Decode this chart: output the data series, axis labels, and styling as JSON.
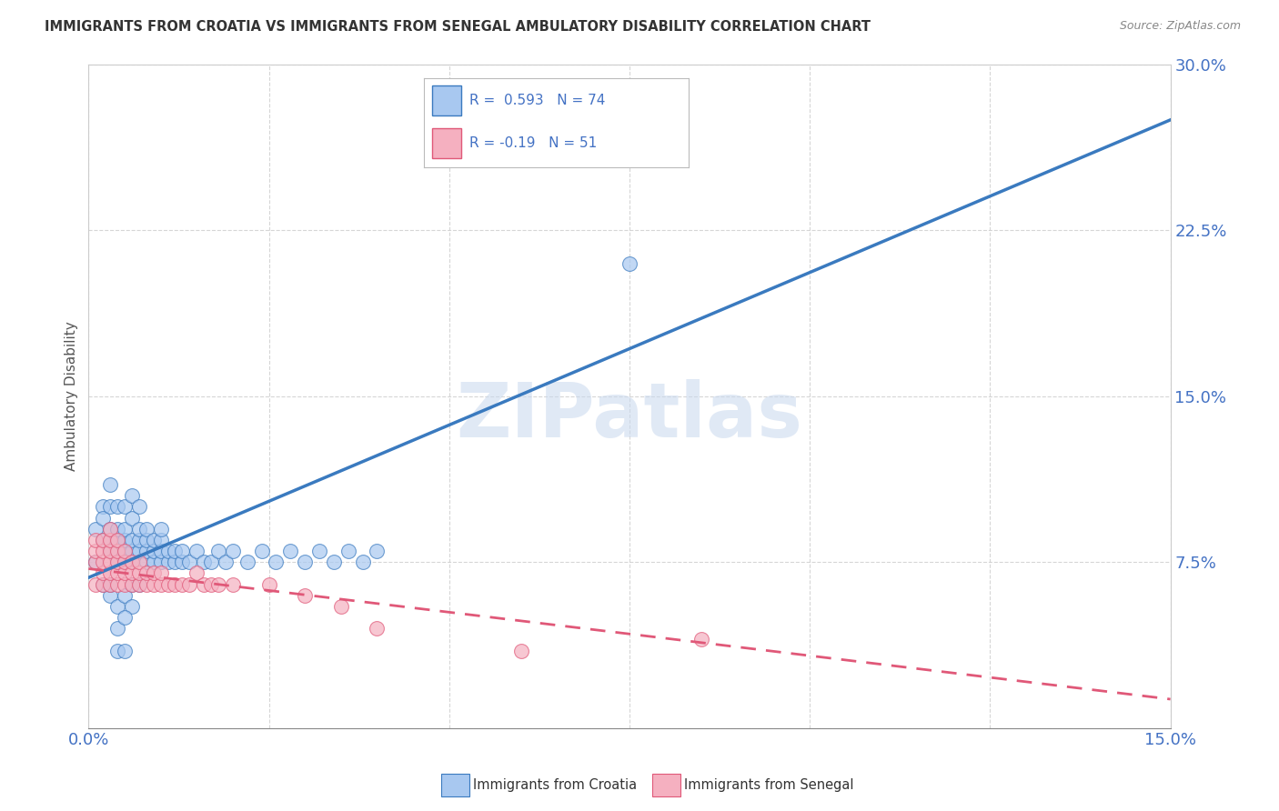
{
  "title": "IMMIGRANTS FROM CROATIA VS IMMIGRANTS FROM SENEGAL AMBULATORY DISABILITY CORRELATION CHART",
  "source": "Source: ZipAtlas.com",
  "ylabel": "Ambulatory Disability",
  "xlim": [
    0.0,
    0.15
  ],
  "ylim": [
    0.0,
    0.3
  ],
  "xticks": [
    0.0,
    0.025,
    0.05,
    0.075,
    0.1,
    0.125,
    0.15
  ],
  "yticks": [
    0.0,
    0.075,
    0.15,
    0.225,
    0.3
  ],
  "ytick_labels": [
    "",
    "7.5%",
    "15.0%",
    "22.5%",
    "30.0%"
  ],
  "xtick_labels": [
    "0.0%",
    "",
    "",
    "",
    "",
    "",
    "15.0%"
  ],
  "croatia_R": 0.593,
  "croatia_N": 74,
  "senegal_R": -0.19,
  "senegal_N": 51,
  "croatia_color": "#a8c8f0",
  "senegal_color": "#f5b0c0",
  "croatia_line_color": "#3a7abf",
  "senegal_line_color": "#e05878",
  "watermark": "ZIPatlas",
  "legend_label_croatia": "Immigrants from Croatia",
  "legend_label_senegal": "Immigrants from Senegal",
  "croatia_line_x0": 0.0,
  "croatia_line_y0": 0.068,
  "croatia_line_x1": 0.15,
  "croatia_line_y1": 0.275,
  "senegal_line_x0": 0.0,
  "senegal_line_y0": 0.072,
  "senegal_line_x1": 0.15,
  "senegal_line_y1": 0.013,
  "croatia_scatter": [
    [
      0.001,
      0.075
    ],
    [
      0.001,
      0.09
    ],
    [
      0.002,
      0.1
    ],
    [
      0.002,
      0.085
    ],
    [
      0.002,
      0.095
    ],
    [
      0.003,
      0.08
    ],
    [
      0.003,
      0.09
    ],
    [
      0.003,
      0.1
    ],
    [
      0.003,
      0.11
    ],
    [
      0.004,
      0.075
    ],
    [
      0.004,
      0.085
    ],
    [
      0.004,
      0.09
    ],
    [
      0.004,
      0.1
    ],
    [
      0.005,
      0.075
    ],
    [
      0.005,
      0.08
    ],
    [
      0.005,
      0.085
    ],
    [
      0.005,
      0.09
    ],
    [
      0.005,
      0.1
    ],
    [
      0.006,
      0.075
    ],
    [
      0.006,
      0.08
    ],
    [
      0.006,
      0.085
    ],
    [
      0.006,
      0.095
    ],
    [
      0.006,
      0.105
    ],
    [
      0.007,
      0.08
    ],
    [
      0.007,
      0.085
    ],
    [
      0.007,
      0.09
    ],
    [
      0.007,
      0.1
    ],
    [
      0.008,
      0.075
    ],
    [
      0.008,
      0.08
    ],
    [
      0.008,
      0.085
    ],
    [
      0.008,
      0.09
    ],
    [
      0.009,
      0.075
    ],
    [
      0.009,
      0.08
    ],
    [
      0.009,
      0.085
    ],
    [
      0.01,
      0.075
    ],
    [
      0.01,
      0.08
    ],
    [
      0.01,
      0.085
    ],
    [
      0.01,
      0.09
    ],
    [
      0.011,
      0.075
    ],
    [
      0.011,
      0.08
    ],
    [
      0.012,
      0.075
    ],
    [
      0.012,
      0.08
    ],
    [
      0.013,
      0.075
    ],
    [
      0.013,
      0.08
    ],
    [
      0.014,
      0.075
    ],
    [
      0.015,
      0.08
    ],
    [
      0.016,
      0.075
    ],
    [
      0.017,
      0.075
    ],
    [
      0.018,
      0.08
    ],
    [
      0.019,
      0.075
    ],
    [
      0.02,
      0.08
    ],
    [
      0.022,
      0.075
    ],
    [
      0.024,
      0.08
    ],
    [
      0.026,
      0.075
    ],
    [
      0.028,
      0.08
    ],
    [
      0.03,
      0.075
    ],
    [
      0.032,
      0.08
    ],
    [
      0.034,
      0.075
    ],
    [
      0.036,
      0.08
    ],
    [
      0.038,
      0.075
    ],
    [
      0.04,
      0.08
    ],
    [
      0.003,
      0.06
    ],
    [
      0.004,
      0.055
    ],
    [
      0.005,
      0.06
    ],
    [
      0.006,
      0.055
    ],
    [
      0.004,
      0.045
    ],
    [
      0.005,
      0.05
    ],
    [
      0.004,
      0.035
    ],
    [
      0.005,
      0.035
    ],
    [
      0.075,
      0.21
    ],
    [
      0.002,
      0.065
    ],
    [
      0.003,
      0.065
    ],
    [
      0.006,
      0.065
    ],
    [
      0.007,
      0.065
    ]
  ],
  "senegal_scatter": [
    [
      0.001,
      0.065
    ],
    [
      0.001,
      0.075
    ],
    [
      0.001,
      0.08
    ],
    [
      0.001,
      0.085
    ],
    [
      0.002,
      0.065
    ],
    [
      0.002,
      0.07
    ],
    [
      0.002,
      0.075
    ],
    [
      0.002,
      0.08
    ],
    [
      0.002,
      0.085
    ],
    [
      0.003,
      0.065
    ],
    [
      0.003,
      0.07
    ],
    [
      0.003,
      0.075
    ],
    [
      0.003,
      0.08
    ],
    [
      0.003,
      0.085
    ],
    [
      0.003,
      0.09
    ],
    [
      0.004,
      0.065
    ],
    [
      0.004,
      0.07
    ],
    [
      0.004,
      0.075
    ],
    [
      0.004,
      0.08
    ],
    [
      0.004,
      0.085
    ],
    [
      0.005,
      0.065
    ],
    [
      0.005,
      0.07
    ],
    [
      0.005,
      0.075
    ],
    [
      0.005,
      0.08
    ],
    [
      0.006,
      0.065
    ],
    [
      0.006,
      0.07
    ],
    [
      0.006,
      0.075
    ],
    [
      0.007,
      0.065
    ],
    [
      0.007,
      0.07
    ],
    [
      0.007,
      0.075
    ],
    [
      0.008,
      0.065
    ],
    [
      0.008,
      0.07
    ],
    [
      0.009,
      0.065
    ],
    [
      0.009,
      0.07
    ],
    [
      0.01,
      0.065
    ],
    [
      0.01,
      0.07
    ],
    [
      0.011,
      0.065
    ],
    [
      0.012,
      0.065
    ],
    [
      0.013,
      0.065
    ],
    [
      0.014,
      0.065
    ],
    [
      0.015,
      0.07
    ],
    [
      0.016,
      0.065
    ],
    [
      0.017,
      0.065
    ],
    [
      0.018,
      0.065
    ],
    [
      0.02,
      0.065
    ],
    [
      0.025,
      0.065
    ],
    [
      0.03,
      0.06
    ],
    [
      0.035,
      0.055
    ],
    [
      0.04,
      0.045
    ],
    [
      0.085,
      0.04
    ],
    [
      0.06,
      0.035
    ]
  ]
}
